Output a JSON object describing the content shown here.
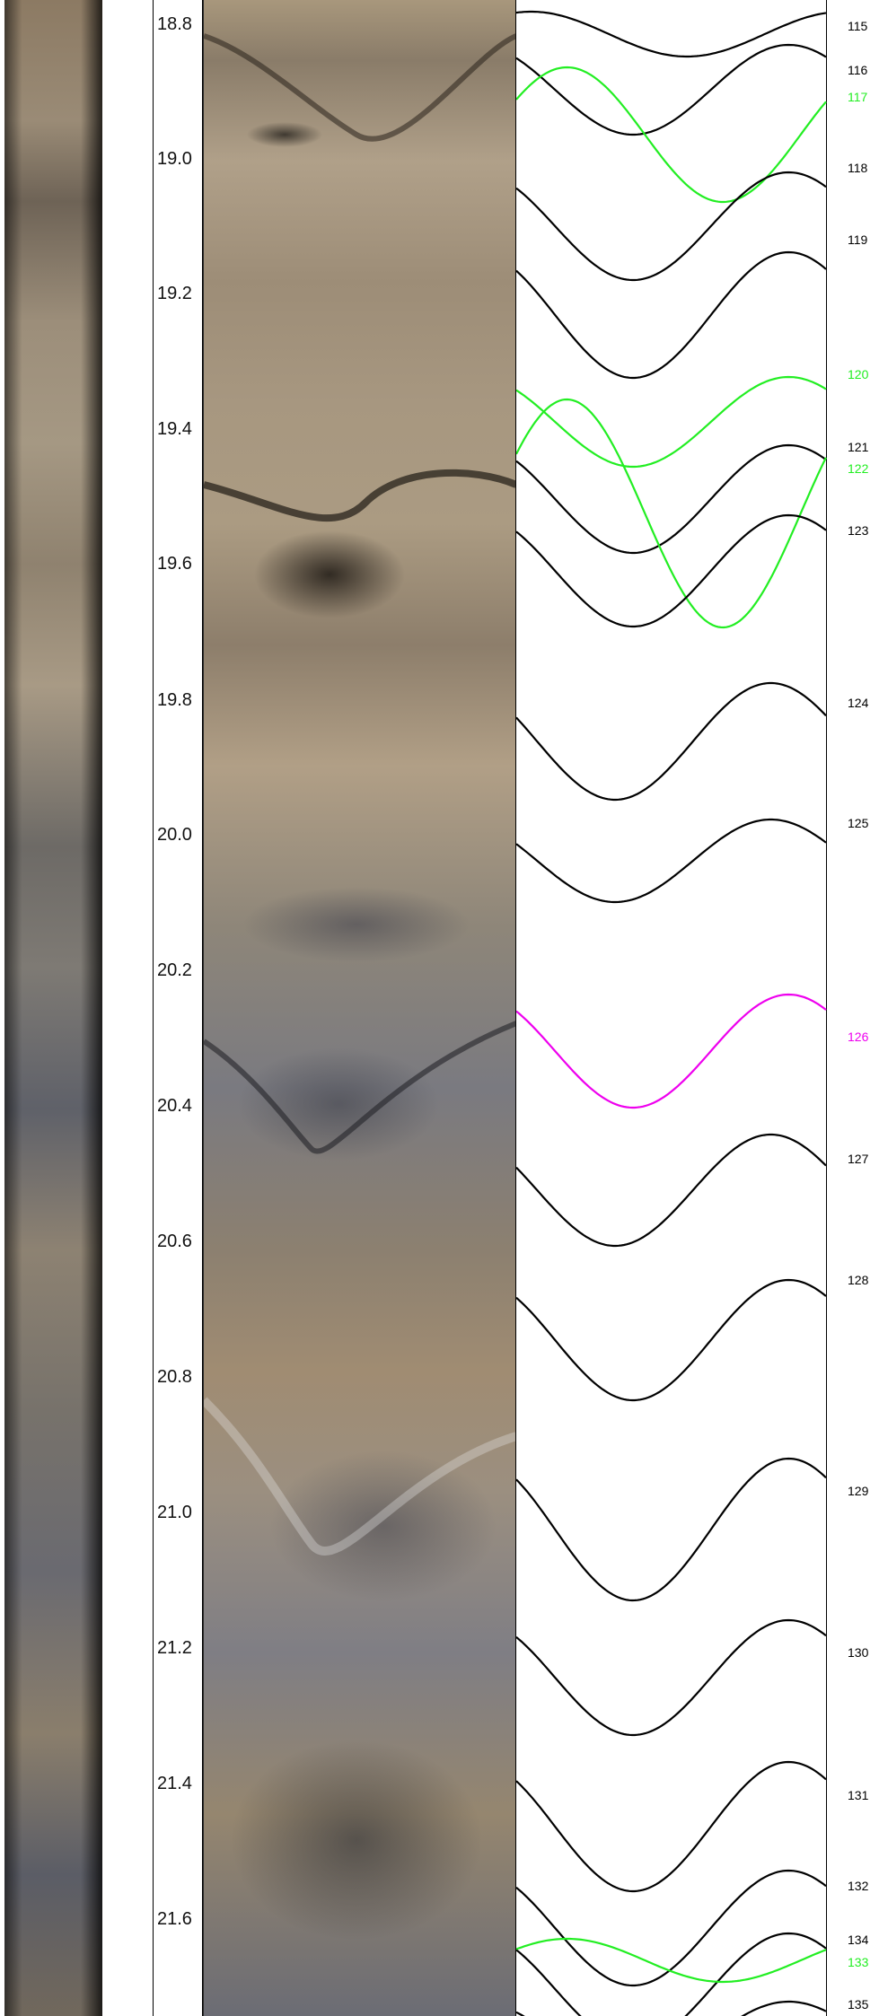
{
  "depth_track": {
    "labels": [
      "18.8",
      "19.0",
      "19.2",
      "19.4",
      "19.6",
      "19.8",
      "20.0",
      "20.2",
      "20.4",
      "20.6",
      "20.8",
      "21.0",
      "21.2",
      "21.4",
      "21.6"
    ]
  },
  "colors": {
    "default_trace": "#000000",
    "green_trace": "#22ee22",
    "magenta_trace": "#ee00ee"
  },
  "features": [
    {
      "id": "115",
      "color": "#000000"
    },
    {
      "id": "116",
      "color": "#000000"
    },
    {
      "id": "117",
      "color": "#22ee22"
    },
    {
      "id": "118",
      "color": "#000000"
    },
    {
      "id": "119",
      "color": "#000000"
    },
    {
      "id": "120",
      "color": "#22ee22"
    },
    {
      "id": "121",
      "color": "#000000"
    },
    {
      "id": "122",
      "color": "#22ee22"
    },
    {
      "id": "123",
      "color": "#000000"
    },
    {
      "id": "124",
      "color": "#000000"
    },
    {
      "id": "125",
      "color": "#000000"
    },
    {
      "id": "126",
      "color": "#ee00ee"
    },
    {
      "id": "127",
      "color": "#000000"
    },
    {
      "id": "128",
      "color": "#000000"
    },
    {
      "id": "129",
      "color": "#000000"
    },
    {
      "id": "130",
      "color": "#000000"
    },
    {
      "id": "131",
      "color": "#000000"
    },
    {
      "id": "132",
      "color": "#000000"
    },
    {
      "id": "134",
      "color": "#000000"
    },
    {
      "id": "133",
      "color": "#22ee22"
    },
    {
      "id": "135",
      "color": "#000000"
    }
  ]
}
